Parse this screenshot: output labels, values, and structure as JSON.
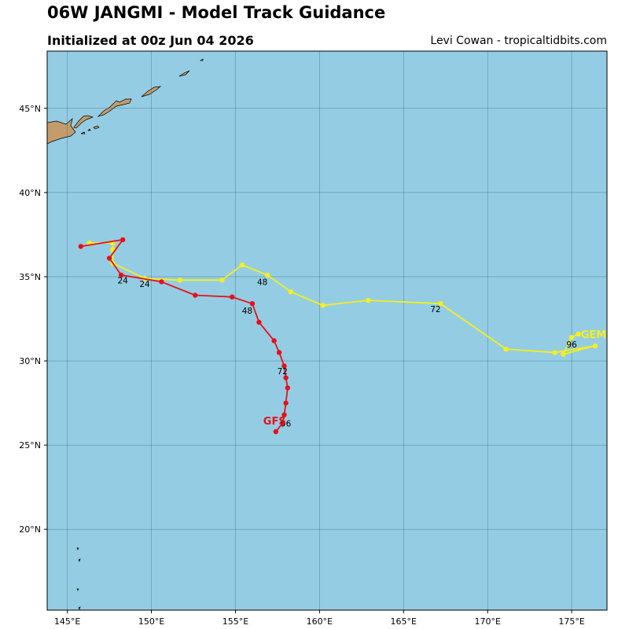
{
  "header": {
    "title": "06W JANGMI - Model Track Guidance",
    "subtitle": "Initialized at 00z Jun 04 2026",
    "credit": "Levi Cowan - tropicaltidbits.com"
  },
  "colors": {
    "ocean": "#94cde3",
    "land": "#c39c6c",
    "gfs": "#e8101a",
    "gem": "#f4ef1e",
    "grid": "#3f6f78"
  },
  "chart_data": {
    "type": "map",
    "lon_range": [
      143.8,
      177.1
    ],
    "lat_range": [
      15.2,
      48.4
    ],
    "lon_ticks": [
      145,
      150,
      155,
      160,
      165,
      170,
      175
    ],
    "lat_ticks": [
      20,
      25,
      30,
      35,
      40,
      45
    ],
    "lon_tick_labels": [
      "145°E",
      "150°E",
      "155°E",
      "160°E",
      "165°E",
      "170°E",
      "175°E"
    ],
    "lat_tick_labels": [
      "20°N",
      "25°N",
      "30°N",
      "35°N",
      "40°N",
      "45°N"
    ],
    "grid": true,
    "series": [
      {
        "name": "GFS",
        "label": "GFS",
        "color": "#e8101a",
        "points": [
          [
            157.4,
            25.8
          ],
          [
            157.8,
            26.3
          ],
          [
            157.9,
            26.8
          ],
          [
            158.0,
            27.5
          ],
          [
            158.1,
            28.4
          ],
          [
            158.0,
            29.0
          ],
          [
            157.9,
            29.7
          ],
          [
            157.6,
            30.5
          ],
          [
            157.3,
            31.2
          ],
          [
            156.4,
            32.3
          ],
          [
            156.0,
            33.4
          ],
          [
            154.8,
            33.8
          ],
          [
            152.6,
            33.9
          ],
          [
            150.6,
            34.7
          ],
          [
            148.2,
            35.1
          ],
          [
            147.5,
            36.1
          ],
          [
            148.3,
            37.2
          ],
          [
            145.8,
            36.8
          ]
        ],
        "hour_labels": [
          {
            "text": "24",
            "lon": 148.3,
            "lat": 34.6
          },
          {
            "text": "48",
            "lon": 155.7,
            "lat": 32.8
          },
          {
            "text": "72",
            "lon": 157.8,
            "lat": 29.2
          },
          {
            "text": "96",
            "lon": 158.0,
            "lat": 26.1
          }
        ]
      },
      {
        "name": "GEM",
        "label": "GEM",
        "color": "#f4ef1e",
        "points": [
          [
            175.4,
            31.6
          ],
          [
            175.0,
            31.4
          ],
          [
            174.5,
            30.4
          ],
          [
            176.4,
            30.9
          ],
          [
            174.0,
            30.5
          ],
          [
            171.1,
            30.7
          ],
          [
            167.2,
            33.4
          ],
          [
            162.9,
            33.6
          ],
          [
            160.2,
            33.3
          ],
          [
            158.3,
            34.1
          ],
          [
            156.9,
            35.1
          ],
          [
            155.4,
            35.7
          ],
          [
            154.2,
            34.8
          ],
          [
            151.7,
            34.8
          ],
          [
            149.6,
            34.9
          ],
          [
            147.7,
            35.8
          ],
          [
            147.7,
            36.6
          ],
          [
            147.7,
            37.0
          ],
          [
            146.3,
            37.0
          ]
        ],
        "hour_labels": [
          {
            "text": "24",
            "lon": 149.6,
            "lat": 34.4
          },
          {
            "text": "48",
            "lon": 156.6,
            "lat": 34.5
          },
          {
            "text": "72",
            "lon": 166.9,
            "lat": 32.9
          },
          {
            "text": "96",
            "lon": 175.0,
            "lat": 30.8
          }
        ]
      }
    ]
  }
}
